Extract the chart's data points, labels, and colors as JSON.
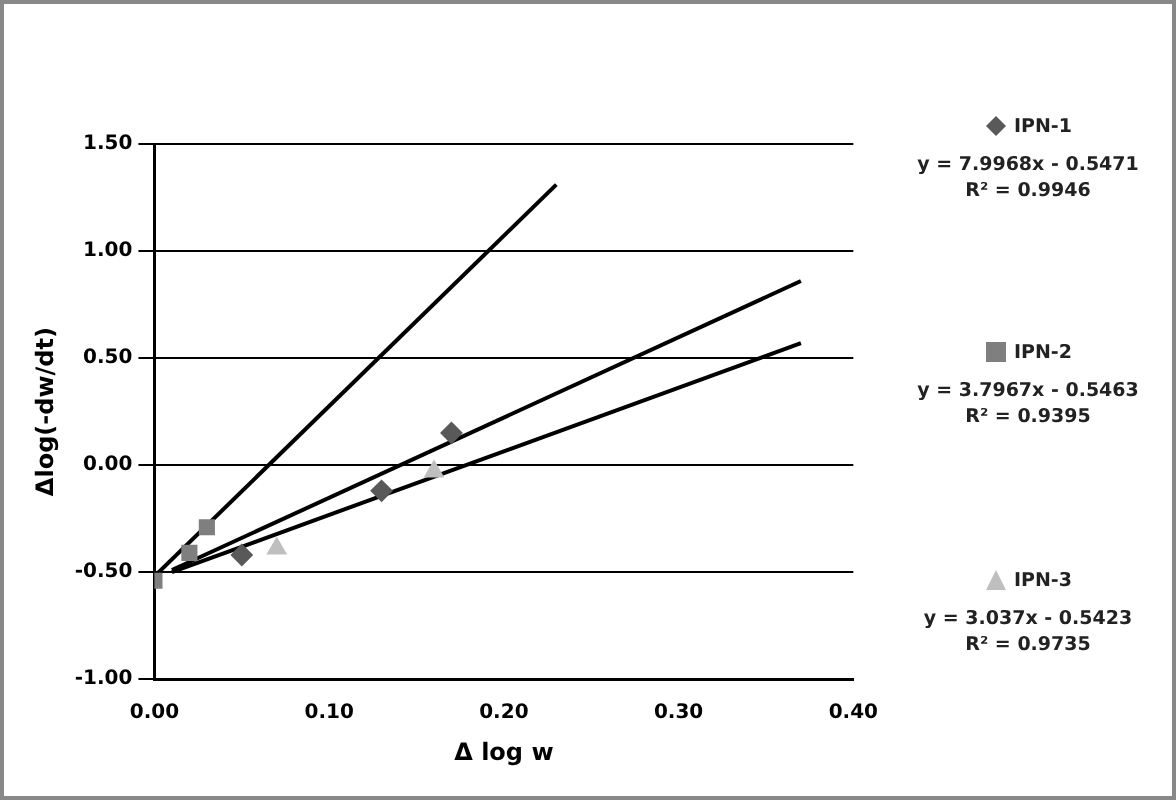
{
  "chart_data": {
    "type": "scatter",
    "xlabel": "Δ log w",
    "ylabel": "Δlog(-dw/dt)",
    "xlim": [
      0,
      0.4
    ],
    "ylim": [
      -1,
      1.5
    ],
    "xticks": [
      {
        "value": 0,
        "label": "0.00"
      },
      {
        "value": 0.1,
        "label": "0.10"
      },
      {
        "value": 0.2,
        "label": "0.20"
      },
      {
        "value": 0.3,
        "label": "0.30"
      },
      {
        "value": 0.4,
        "label": "0.40"
      }
    ],
    "yticks": [
      {
        "value": -1,
        "label": "-1.00"
      },
      {
        "value": -0.5,
        "label": "-0.50"
      },
      {
        "value": 0,
        "label": "0.00"
      },
      {
        "value": 0.5,
        "label": "0.50"
      },
      {
        "value": 1,
        "label": "1.00"
      },
      {
        "value": 1.5,
        "label": "1.50"
      }
    ],
    "grid": "y",
    "legend": "right",
    "series": [
      {
        "name": "IPN-1",
        "marker": "diamond",
        "color": "#595959",
        "x": [
          0.05,
          0.13,
          0.17
        ],
        "values": [
          -0.42,
          -0.12,
          0.15
        ]
      },
      {
        "name": "IPN-2",
        "marker": "square",
        "color": "#7f7f7f",
        "x": [
          0.0,
          0.02,
          0.03
        ],
        "values": [
          -0.54,
          -0.41,
          -0.29
        ]
      },
      {
        "name": "IPN-3",
        "marker": "triangle",
        "color": "#bfbfbf",
        "x": [
          0.07,
          0.16
        ],
        "values": [
          -0.39,
          -0.03
        ]
      },
      {
        "type": "line",
        "marker": "none",
        "color": "#000000",
        "x": [
          0.0,
          0.23
        ],
        "values": [
          -0.52,
          1.31
        ]
      },
      {
        "type": "line",
        "marker": "none",
        "color": "#000000",
        "x": [
          0.01,
          0.37
        ],
        "values": [
          -0.49,
          0.86
        ]
      },
      {
        "type": "line",
        "marker": "none",
        "color": "#000000",
        "x": [
          0.01,
          0.37
        ],
        "values": [
          -0.5,
          0.57
        ]
      }
    ],
    "annotations": [
      "y = 7.9968x - 0.5471",
      "R² = 0.9946",
      "y = 3.7967x - 0.5463",
      "R² = 0.9395",
      "y = 3.037x - 0.5423",
      "R² = 0.9735"
    ]
  }
}
